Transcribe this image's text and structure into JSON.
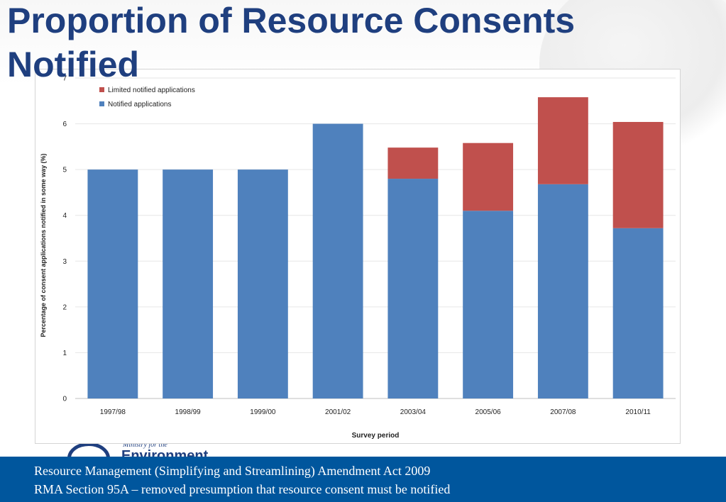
{
  "slide": {
    "title": "Proportion of Resource Consents Notified"
  },
  "chart_data": {
    "type": "bar",
    "stacked": true,
    "xlabel": "Survey period",
    "ylabel": "Percentage of consent applications notified in some way (%)",
    "ylim": [
      0,
      7
    ],
    "yticks": [
      0,
      1,
      2,
      3,
      4,
      5,
      6,
      7
    ],
    "grid": true,
    "legend_position": "top-left",
    "categories": [
      "1997/98",
      "1998/99",
      "1999/00",
      "2001/02",
      "2003/04",
      "2005/06",
      "2007/08",
      "2010/11"
    ],
    "series": [
      {
        "name": "Notified applications",
        "color": "#4f81bd",
        "values": [
          5.0,
          5.0,
          5.0,
          6.0,
          4.8,
          4.1,
          4.68,
          3.72
        ]
      },
      {
        "name": "Limited notified applications",
        "color": "#c0504d",
        "values": [
          0,
          0,
          0,
          0,
          0.68,
          1.48,
          1.9,
          2.32
        ]
      }
    ],
    "legend_order": [
      "Limited notified applications",
      "Notified applications"
    ]
  },
  "logo": {
    "small_text": "Ministry for the",
    "big_text": "Environment"
  },
  "footer": {
    "line1": "Resource Management (Simplifying and Streamlining) Amendment Act 2009",
    "line2": "RMA Section 95A – removed presumption that resource consent must be notified"
  }
}
